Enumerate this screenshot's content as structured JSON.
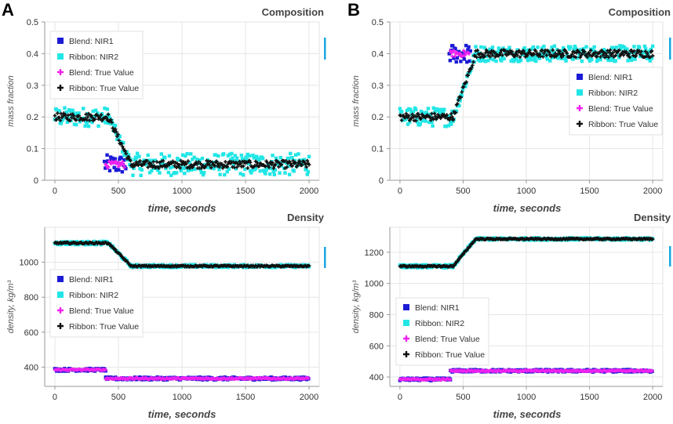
{
  "colors": {
    "blend_nir1": "#1b1bd6",
    "ribbon_nir2": "#22e6e6",
    "blend_true": "#ee22ee",
    "ribbon_true": "#111111",
    "accent_bar": "#1aa6e0"
  },
  "chart_data": [
    {
      "id": "A-composition",
      "panel": "A",
      "type": "scatter",
      "title": "Composition",
      "xlabel": "time, seconds",
      "ylabel": "mass fraction",
      "xlim": [
        -80,
        2080
      ],
      "ylim": [
        0,
        0.5
      ],
      "xticks": [
        0,
        500,
        1000,
        1500,
        2000
      ],
      "yticks": [
        0,
        0.1,
        0.2,
        0.3,
        0.4,
        0.5
      ],
      "ytick_labels": [
        "0",
        "0.1",
        "0.2",
        "0.3",
        "0.4",
        "0.5"
      ],
      "legend": [
        "Blend: NIR1",
        "Ribbon: NIR2",
        "Blend: True Value",
        "Ribbon: True Value"
      ],
      "legend_position": "top-left",
      "series": [
        {
          "name": "Blend: NIR1",
          "segments": [
            {
              "t0": 390,
              "t1": 560,
              "level": 0.05,
              "noise": 0.03
            }
          ]
        },
        {
          "name": "Ribbon: NIR2",
          "segments": [
            {
              "t0": 0,
              "t1": 420,
              "level": 0.2,
              "noise": 0.03
            },
            {
              "t0": 420,
              "t1": 600,
              "from": 0.2,
              "to": 0.05,
              "noise": 0.02
            },
            {
              "t0": 600,
              "t1": 2000,
              "level": 0.05,
              "noise": 0.035
            }
          ]
        },
        {
          "name": "Blend: True Value",
          "segments": [
            {
              "t0": 400,
              "t1": 550,
              "level": 0.05,
              "noise": 0.01
            }
          ]
        },
        {
          "name": "Ribbon: True Value",
          "segments": [
            {
              "t0": 0,
              "t1": 420,
              "level": 0.2,
              "noise": 0.012
            },
            {
              "t0": 420,
              "t1": 600,
              "from": 0.2,
              "to": 0.05,
              "noise": 0.01
            },
            {
              "t0": 600,
              "t1": 2000,
              "level": 0.05,
              "noise": 0.012
            }
          ]
        }
      ]
    },
    {
      "id": "B-composition",
      "panel": "B",
      "type": "scatter",
      "title": "Composition",
      "xlabel": "time, seconds",
      "ylabel": "mass fraction",
      "xlim": [
        -80,
        2080
      ],
      "ylim": [
        0,
        0.5
      ],
      "xticks": [
        0,
        500,
        1000,
        1500,
        2000
      ],
      "yticks": [
        0,
        0.1,
        0.2,
        0.3,
        0.4,
        0.5
      ],
      "ytick_labels": [
        "0",
        "0.1",
        "0.2",
        "0.3",
        "0.4",
        "0.5"
      ],
      "legend": [
        "Blend: NIR1",
        "Ribbon: NIR2",
        "Blend: True Value",
        "Ribbon: True Value"
      ],
      "legend_position": "center-right",
      "series": [
        {
          "name": "Blend: NIR1",
          "segments": [
            {
              "t0": 390,
              "t1": 560,
              "level": 0.4,
              "noise": 0.03
            }
          ]
        },
        {
          "name": "Ribbon: NIR2",
          "segments": [
            {
              "t0": 0,
              "t1": 420,
              "level": 0.2,
              "noise": 0.03
            },
            {
              "t0": 420,
              "t1": 600,
              "from": 0.2,
              "to": 0.4,
              "noise": 0.02
            },
            {
              "t0": 600,
              "t1": 2000,
              "level": 0.4,
              "noise": 0.025
            }
          ]
        },
        {
          "name": "Blend: True Value",
          "segments": [
            {
              "t0": 400,
              "t1": 550,
              "level": 0.4,
              "noise": 0.01
            }
          ]
        },
        {
          "name": "Ribbon: True Value",
          "segments": [
            {
              "t0": 0,
              "t1": 420,
              "level": 0.2,
              "noise": 0.012
            },
            {
              "t0": 420,
              "t1": 600,
              "from": 0.2,
              "to": 0.4,
              "noise": 0.01
            },
            {
              "t0": 600,
              "t1": 2000,
              "level": 0.4,
              "noise": 0.012
            }
          ]
        }
      ]
    },
    {
      "id": "A-density",
      "panel": "A",
      "type": "scatter",
      "title": "Density",
      "xlabel": "time, seconds",
      "ylabel": "density, kg/m³",
      "xlim": [
        -80,
        2080
      ],
      "ylim": [
        290,
        1200
      ],
      "xticks": [
        0,
        500,
        1000,
        1500,
        2000
      ],
      "yticks": [
        400,
        600,
        800,
        1000
      ],
      "ytick_labels": [
        "400",
        "600",
        "800",
        "1000"
      ],
      "legend": [
        "Blend: NIR1",
        "Ribbon: NIR2",
        "Blend: True Value",
        "Ribbon: True Value"
      ],
      "legend_position": "center-left",
      "series": [
        {
          "name": "Blend: NIR1",
          "segments": [
            {
              "t0": 0,
              "t1": 400,
              "level": 385,
              "noise": 8
            },
            {
              "t0": 400,
              "t1": 2000,
              "level": 335,
              "noise": 8
            }
          ]
        },
        {
          "name": "Ribbon: NIR2",
          "segments": [
            {
              "t0": 0,
              "t1": 420,
              "level": 1110,
              "noise": 10
            },
            {
              "t0": 420,
              "t1": 600,
              "from": 1110,
              "to": 978,
              "noise": 8
            },
            {
              "t0": 600,
              "t1": 2000,
              "level": 978,
              "noise": 8
            }
          ]
        },
        {
          "name": "Blend: True Value",
          "segments": [
            {
              "t0": 0,
              "t1": 400,
              "level": 385,
              "noise": 4
            },
            {
              "t0": 400,
              "t1": 2000,
              "level": 335,
              "noise": 4
            }
          ]
        },
        {
          "name": "Ribbon: True Value",
          "segments": [
            {
              "t0": 0,
              "t1": 420,
              "level": 1110,
              "noise": 4
            },
            {
              "t0": 420,
              "t1": 600,
              "from": 1110,
              "to": 978,
              "noise": 4
            },
            {
              "t0": 600,
              "t1": 2000,
              "level": 978,
              "noise": 4
            }
          ]
        }
      ]
    },
    {
      "id": "B-density",
      "panel": "B",
      "type": "scatter",
      "title": "Density",
      "xlabel": "time, seconds",
      "ylabel": "density, kg/m³",
      "xlim": [
        -80,
        2080
      ],
      "ylim": [
        340,
        1360
      ],
      "xticks": [
        0,
        500,
        1000,
        1500,
        2000
      ],
      "yticks": [
        400,
        600,
        800,
        1000,
        1200
      ],
      "ytick_labels": [
        "400",
        "600",
        "800",
        "1000",
        "1200"
      ],
      "legend": [
        "Blend: NIR1",
        "Ribbon: NIR2",
        "Blend: True Value",
        "Ribbon: True Value"
      ],
      "legend_position": "center-left",
      "series": [
        {
          "name": "Blend: NIR1",
          "segments": [
            {
              "t0": 0,
              "t1": 400,
              "level": 385,
              "noise": 8
            },
            {
              "t0": 400,
              "t1": 2000,
              "level": 440,
              "noise": 8
            }
          ]
        },
        {
          "name": "Ribbon: NIR2",
          "segments": [
            {
              "t0": 0,
              "t1": 420,
              "level": 1110,
              "noise": 10
            },
            {
              "t0": 420,
              "t1": 600,
              "from": 1110,
              "to": 1285,
              "noise": 8
            },
            {
              "t0": 600,
              "t1": 2000,
              "level": 1285,
              "noise": 8
            }
          ]
        },
        {
          "name": "Blend: True Value",
          "segments": [
            {
              "t0": 0,
              "t1": 400,
              "level": 385,
              "noise": 4
            },
            {
              "t0": 400,
              "t1": 2000,
              "level": 440,
              "noise": 4
            }
          ]
        },
        {
          "name": "Ribbon: True Value",
          "segments": [
            {
              "t0": 0,
              "t1": 420,
              "level": 1110,
              "noise": 4
            },
            {
              "t0": 420,
              "t1": 600,
              "from": 1110,
              "to": 1285,
              "noise": 4
            },
            {
              "t0": 600,
              "t1": 2000,
              "level": 1285,
              "noise": 4
            }
          ]
        }
      ]
    }
  ],
  "panel_labels": [
    "A",
    "B"
  ]
}
